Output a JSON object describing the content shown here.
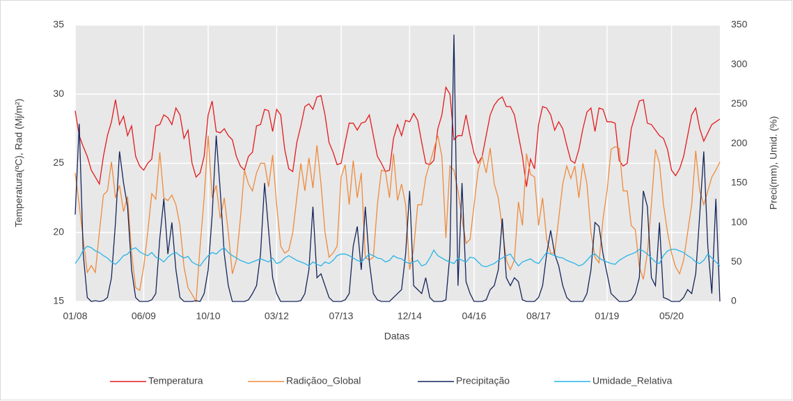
{
  "chart_data": {
    "type": "line",
    "x_label": "Datas",
    "y_label": "Temperatura(ºC),  Rad (Mj/m²)",
    "y2_label": "Preci(mm),   Umid. (%)",
    "categories": [
      "01/08",
      null,
      null,
      null,
      null,
      null,
      null,
      null,
      null,
      null,
      null,
      null,
      null,
      null,
      null,
      null,
      null,
      "06/09",
      null,
      null,
      null,
      null,
      null,
      null,
      null,
      null,
      null,
      null,
      null,
      null,
      null,
      null,
      null,
      "10/10",
      null,
      null,
      null,
      null,
      null,
      null,
      null,
      null,
      null,
      null,
      null,
      null,
      null,
      null,
      null,
      null,
      "03/12",
      null,
      null,
      null,
      null,
      null,
      null,
      null,
      null,
      null,
      null,
      null,
      null,
      null,
      null,
      null,
      "07/13",
      null,
      null,
      null,
      null,
      null,
      null,
      null,
      null,
      null,
      null,
      null,
      null,
      null,
      null,
      null,
      null,
      "12/14",
      null,
      null,
      null,
      null,
      null,
      null,
      null,
      null,
      null,
      null,
      null,
      null,
      null,
      null,
      null,
      "04/16",
      null,
      null,
      null,
      null,
      null,
      null,
      null,
      null,
      null,
      null,
      null,
      null,
      null,
      null,
      null,
      "08/17",
      null,
      null,
      null,
      null,
      null,
      null,
      null,
      null,
      null,
      null,
      null,
      null,
      null,
      null,
      null,
      null,
      "01/19",
      null,
      null,
      null,
      null,
      null,
      null,
      null,
      null,
      null,
      null,
      null,
      null,
      null,
      null,
      null,
      "05/20",
      null,
      null,
      null,
      null,
      null,
      null,
      null,
      null,
      null,
      null,
      null,
      null
    ],
    "series": [
      {
        "name": "Temperatura",
        "color": "#e3191c",
        "axis": "y",
        "values": [
          28.8,
          27,
          26.2,
          25.5,
          24.5,
          24,
          23.5,
          25.5,
          27,
          28,
          29.6,
          27.8,
          28.4,
          27,
          27.7,
          25.5,
          24.8,
          24.5,
          25,
          25.3,
          27.7,
          27.8,
          28.5,
          28.3,
          27.8,
          29,
          28.5,
          26.8,
          27.4,
          25,
          24,
          24.3,
          25.5,
          28.5,
          29.5,
          27.3,
          27.2,
          27.5,
          27,
          26.7,
          25.5,
          24.8,
          24.5,
          25.5,
          25.8,
          27.7,
          27.8,
          28.9,
          28.8,
          27.3,
          28.9,
          28.5,
          26,
          24.6,
          24.4,
          26.5,
          27.7,
          29.1,
          29.3,
          28.9,
          29.8,
          29.9,
          28.5,
          26.5,
          25.8,
          24.9,
          25,
          26.5,
          27.9,
          27.9,
          27.4,
          27.9,
          28,
          28.5,
          27,
          25.5,
          25,
          24.4,
          24.5,
          26.8,
          27.8,
          27,
          28.1,
          28,
          28.6,
          28.1,
          26.5,
          25,
          24.9,
          25.2,
          27.5,
          28.5,
          30.5,
          30,
          26.7,
          27,
          27,
          28.5,
          27,
          25.7,
          25,
          25.5,
          27,
          28.5,
          29.2,
          29.6,
          29.8,
          29.1,
          29.1,
          28.5,
          27,
          25.5,
          23.3,
          25.3,
          24.6,
          27.8,
          29.1,
          29,
          28.5,
          27.4,
          28,
          27.5,
          26.3,
          25.2,
          25,
          26,
          27.5,
          28.7,
          29,
          27.3,
          29,
          28.9,
          28,
          28,
          27.9,
          25.2,
          24.8,
          25,
          27.5,
          28.5,
          29.5,
          29.6,
          27.9,
          27.8,
          27.4,
          27,
          26.8,
          26,
          24.5,
          24.1,
          24.6,
          25.5,
          27,
          28.5,
          29,
          27.5,
          26.6,
          27.2,
          27.8,
          28,
          28.2
        ]
      },
      {
        "name": "Radiçãoo_Global",
        "color": "#ee8a3c",
        "axis": "y",
        "values": [
          24.3,
          22,
          19.5,
          17.1,
          17.6,
          17.1,
          20,
          22.7,
          23,
          25.1,
          22.5,
          23.4,
          21.5,
          22.6,
          18.5,
          16,
          15.8,
          17.5,
          20,
          22.8,
          22.4,
          25.8,
          22.5,
          22.3,
          22.7,
          22,
          20.5,
          17.5,
          16,
          15.5,
          15,
          19,
          22.5,
          27,
          22.5,
          23.4,
          21,
          22.5,
          20,
          17,
          18,
          21,
          24.5,
          23.5,
          23,
          24.3,
          25,
          25,
          23.3,
          25.6,
          22,
          19,
          18.5,
          18.7,
          20,
          22.5,
          25,
          23,
          25.4,
          23.2,
          26.3,
          23.5,
          20,
          18.2,
          18.5,
          19,
          24,
          24.9,
          22,
          25.2,
          22.5,
          24.3,
          18.2,
          18,
          18.2,
          22,
          24.5,
          24.4,
          22.5,
          25.7,
          22.3,
          23.5,
          22,
          17.3,
          18.8,
          22,
          22,
          24,
          25,
          26,
          27,
          25.5,
          19.6,
          24.8,
          24.5,
          23,
          21,
          19.2,
          19.5,
          22,
          24.5,
          25.5,
          24.3,
          26.1,
          23.5,
          22.5,
          20.3,
          18,
          17.3,
          18,
          22.2,
          20.5,
          25.7,
          24.2,
          24,
          20.5,
          22.5,
          19.5,
          18.5,
          18.5,
          21,
          23.5,
          24.8,
          23.9,
          24.8,
          22.5,
          25,
          23.5,
          20,
          18.2,
          17.8,
          21,
          23,
          26,
          26.2,
          26.1,
          23,
          23,
          20.5,
          20.2,
          17.5,
          16.6,
          18.5,
          22,
          26,
          25,
          22,
          20,
          18.5,
          17.5,
          17,
          18,
          20,
          22,
          25.9,
          23,
          22,
          23,
          24,
          24.5,
          25.1
        ]
      },
      {
        "name": "Precipitação",
        "color": "#14245a",
        "axis": "y2",
        "values": [
          110,
          225,
          60,
          5,
          0,
          1,
          0,
          1,
          5,
          30,
          100,
          190,
          150,
          120,
          40,
          5,
          0,
          0,
          0,
          2,
          10,
          80,
          130,
          60,
          100,
          40,
          5,
          0,
          0,
          0,
          1,
          0,
          10,
          40,
          110,
          210,
          140,
          60,
          20,
          0,
          0,
          0,
          0,
          2,
          10,
          20,
          60,
          150,
          90,
          30,
          10,
          0,
          0,
          0,
          0,
          0,
          1,
          10,
          40,
          120,
          30,
          35,
          20,
          5,
          0,
          0,
          0,
          2,
          10,
          70,
          95,
          40,
          120,
          50,
          10,
          2,
          0,
          0,
          0,
          5,
          10,
          15,
          60,
          140,
          20,
          15,
          10,
          30,
          5,
          0,
          0,
          0,
          2,
          60,
          338,
          20,
          150,
          25,
          10,
          0,
          0,
          0,
          2,
          15,
          20,
          40,
          105,
          30,
          20,
          30,
          25,
          2,
          0,
          0,
          0,
          5,
          20,
          60,
          90,
          60,
          45,
          20,
          5,
          0,
          0,
          0,
          0,
          10,
          40,
          100,
          95,
          60,
          35,
          10,
          5,
          0,
          0,
          0,
          2,
          10,
          30,
          140,
          120,
          30,
          20,
          100,
          5,
          3,
          0,
          0,
          0,
          5,
          15,
          10,
          35,
          110,
          190,
          70,
          10,
          130,
          0
        ]
      },
      {
        "name": "Umidade_Relativa",
        "color": "#27b4e8",
        "axis": "y2",
        "values": [
          48,
          55,
          65,
          70,
          68,
          64,
          62,
          58,
          55,
          50,
          47,
          52,
          58,
          60,
          66,
          68,
          63,
          60,
          58,
          62,
          56,
          54,
          50,
          56,
          60,
          62,
          58,
          55,
          57,
          50,
          47,
          45,
          52,
          58,
          62,
          60,
          65,
          68,
          62,
          58,
          55,
          52,
          50,
          48,
          50,
          52,
          54,
          52,
          50,
          55,
          48,
          50,
          55,
          58,
          55,
          52,
          50,
          48,
          45,
          50,
          47,
          45,
          50,
          48,
          52,
          58,
          60,
          60,
          58,
          55,
          52,
          50,
          55,
          60,
          58,
          55,
          54,
          50,
          52,
          58,
          55,
          54,
          50,
          48,
          50,
          52,
          45,
          47,
          55,
          65,
          58,
          55,
          52,
          50,
          48,
          55,
          52,
          50,
          56,
          55,
          50,
          45,
          44,
          46,
          48,
          52,
          55,
          58,
          60,
          52,
          45,
          50,
          52,
          54,
          50,
          48,
          55,
          62,
          60,
          58,
          56,
          55,
          52,
          50,
          48,
          45,
          47,
          52,
          58,
          60,
          55,
          52,
          50,
          48,
          47,
          52,
          55,
          58,
          60,
          62,
          66,
          64,
          60,
          55,
          50,
          48,
          58,
          64,
          66,
          66,
          64,
          62,
          58,
          55,
          50,
          48,
          52,
          60,
          55,
          50,
          45
        ]
      }
    ],
    "ylim": [
      15,
      35
    ],
    "yticks": [
      15,
      20,
      25,
      30,
      35
    ],
    "y2lim": [
      0,
      350
    ],
    "y2ticks": [
      0,
      50,
      100,
      150,
      200,
      250,
      300,
      350
    ],
    "grid": true,
    "legend": "bottom"
  }
}
